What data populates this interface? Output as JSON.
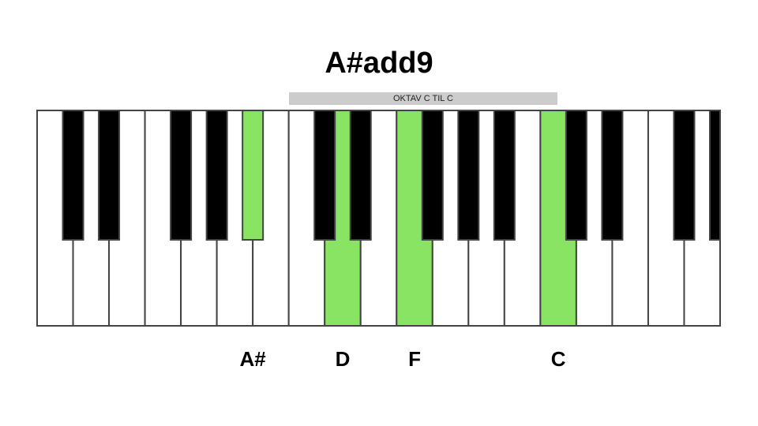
{
  "title": "A#add9",
  "octave_label": "OKTAV C TIL C",
  "colors": {
    "highlight": "#8ae463",
    "white_key": "#ffffff",
    "black_key": "#000000",
    "key_border": "#444444"
  },
  "keyboard": {
    "white_key_count": 19,
    "highlighted_white": [
      8,
      10,
      14
    ],
    "black_keys": [
      {
        "after_white": 0,
        "highlighted": false
      },
      {
        "after_white": 1,
        "highlighted": false
      },
      {
        "after_white": 3,
        "highlighted": false
      },
      {
        "after_white": 4,
        "highlighted": false
      },
      {
        "after_white": 5,
        "highlighted": true
      },
      {
        "after_white": 7,
        "highlighted": false
      },
      {
        "after_white": 8,
        "highlighted": false
      },
      {
        "after_white": 10,
        "highlighted": false
      },
      {
        "after_white": 11,
        "highlighted": false
      },
      {
        "after_white": 12,
        "highlighted": false
      },
      {
        "after_white": 14,
        "highlighted": false
      },
      {
        "after_white": 15,
        "highlighted": false
      },
      {
        "after_white": 17,
        "highlighted": false
      },
      {
        "after_white": 18,
        "highlighted": false
      }
    ]
  },
  "note_labels": [
    {
      "text": "A#",
      "key": "black",
      "index": 4
    },
    {
      "text": "D",
      "key": "white",
      "index": 8
    },
    {
      "text": "F",
      "key": "white",
      "index": 10
    },
    {
      "text": "C",
      "key": "white",
      "index": 14
    }
  ]
}
